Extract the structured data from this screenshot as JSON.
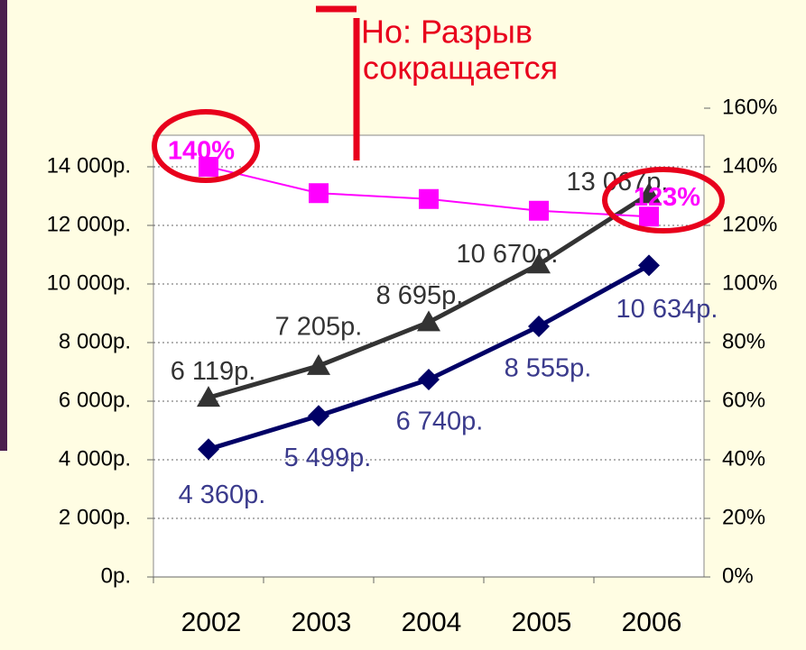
{
  "chart_data": {
    "type": "line",
    "title": "Но: Разрыв",
    "subtitle": "сокращается",
    "categories": [
      "2002",
      "2003",
      "2004",
      "2005",
      "2006"
    ],
    "ylim": [
      0,
      16000
    ],
    "yticks": [
      {
        "value": 0,
        "label": "0р."
      },
      {
        "value": 2000,
        "label": "2 000р."
      },
      {
        "value": 4000,
        "label": "4 000р."
      },
      {
        "value": 6000,
        "label": "6 000р."
      },
      {
        "value": 8000,
        "label": "8 000р."
      },
      {
        "value": 10000,
        "label": "10 000р."
      },
      {
        "value": 12000,
        "label": "12 000р."
      },
      {
        "value": 14000,
        "label": "14 000р."
      }
    ],
    "y2lim": [
      0,
      160
    ],
    "y2ticks": [
      {
        "value": 0,
        "label": "0%"
      },
      {
        "value": 20,
        "label": "20%"
      },
      {
        "value": 40,
        "label": "40%"
      },
      {
        "value": 60,
        "label": "60%"
      },
      {
        "value": 80,
        "label": "80%"
      },
      {
        "value": 100,
        "label": "100%"
      },
      {
        "value": 120,
        "label": "120%"
      },
      {
        "value": 140,
        "label": "140%"
      },
      {
        "value": 160,
        "label": "160%"
      }
    ],
    "grid": true,
    "series": [
      {
        "color": "#333333",
        "marker": "triangle",
        "values": [
          6119,
          7205,
          8695,
          10670,
          13067
        ],
        "value_labels": [
          "6 119р.",
          "7 205р.",
          "8 695р.",
          "10 670р.",
          "13 067р."
        ]
      },
      {
        "color": "#000066",
        "label_color": "#3a3a8c",
        "marker": "diamond",
        "values": [
          4360,
          5499,
          6740,
          8555,
          10634
        ],
        "value_labels": [
          "4 360р.",
          "5 499р.",
          "6 740р.",
          "8 555р.",
          "10 634р."
        ]
      },
      {
        "color": "#ff00ff",
        "marker": "square",
        "axis": "y2",
        "values": [
          140,
          131,
          129,
          125,
          123
        ],
        "value_labels": [
          "140%",
          null,
          null,
          null,
          "123%"
        ]
      }
    ]
  }
}
